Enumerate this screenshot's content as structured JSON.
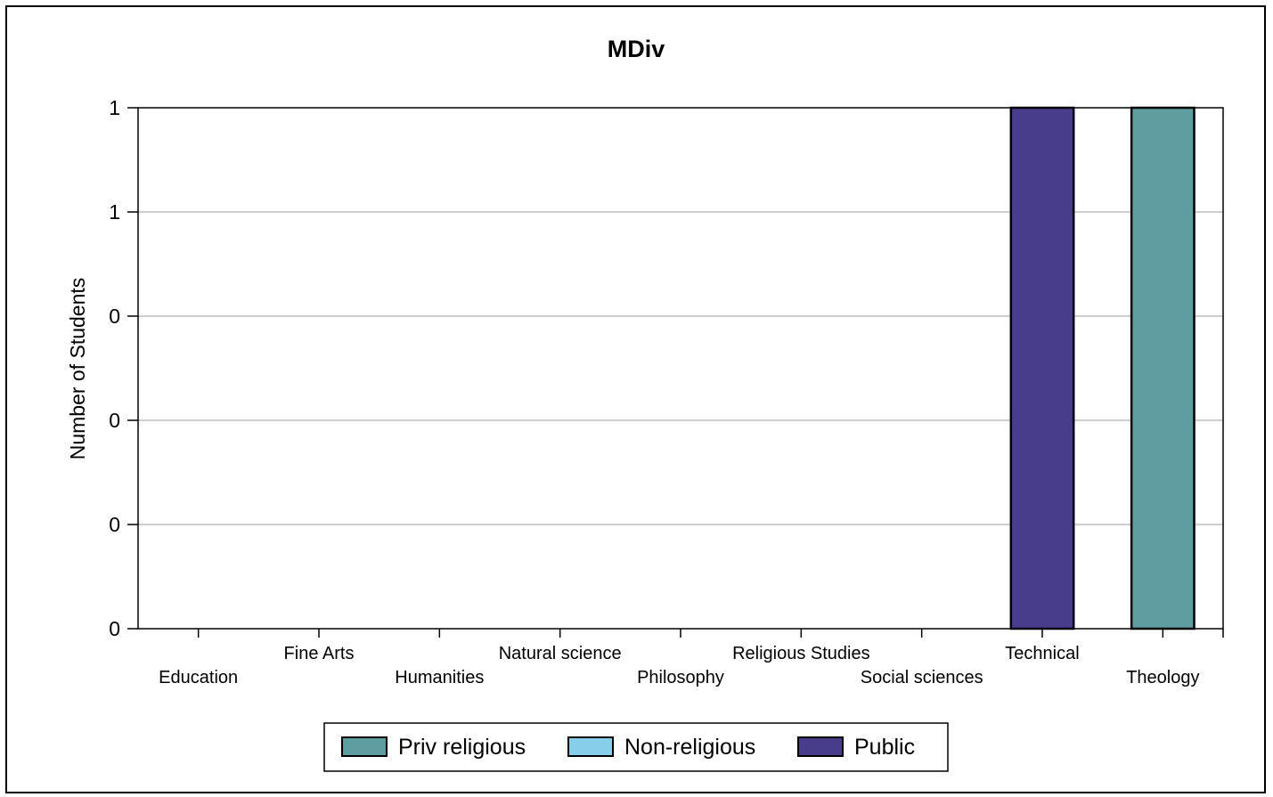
{
  "chart_data": {
    "type": "bar",
    "title": "MDiv",
    "xlabel": "",
    "ylabel": "Number of Students",
    "categories": [
      "Education",
      "Fine Arts",
      "Humanities",
      "Natural science",
      "Philosophy",
      "Religious Studies",
      "Social sciences",
      "Technical",
      "Theology"
    ],
    "series": [
      {
        "name": "Priv religious",
        "color": "#5f9ea0",
        "values": [
          0,
          0,
          0,
          0,
          0,
          0,
          0,
          0,
          1
        ]
      },
      {
        "name": "Non-religious",
        "color": "#87ceeb",
        "values": [
          0,
          0,
          0,
          0,
          0,
          0,
          0,
          0,
          0
        ]
      },
      {
        "name": "Public",
        "color": "#483d8b",
        "values": [
          0,
          0,
          0,
          0,
          0,
          0,
          0,
          1,
          0
        ]
      }
    ],
    "ylim": [
      0,
      1
    ],
    "yticks": [
      0,
      0.2,
      0.4,
      0.6,
      0.8,
      1
    ],
    "ytick_labels": [
      "0",
      "0",
      "0",
      "0",
      "1",
      "1"
    ],
    "grid": true,
    "legend_position": "bottom-center"
  }
}
